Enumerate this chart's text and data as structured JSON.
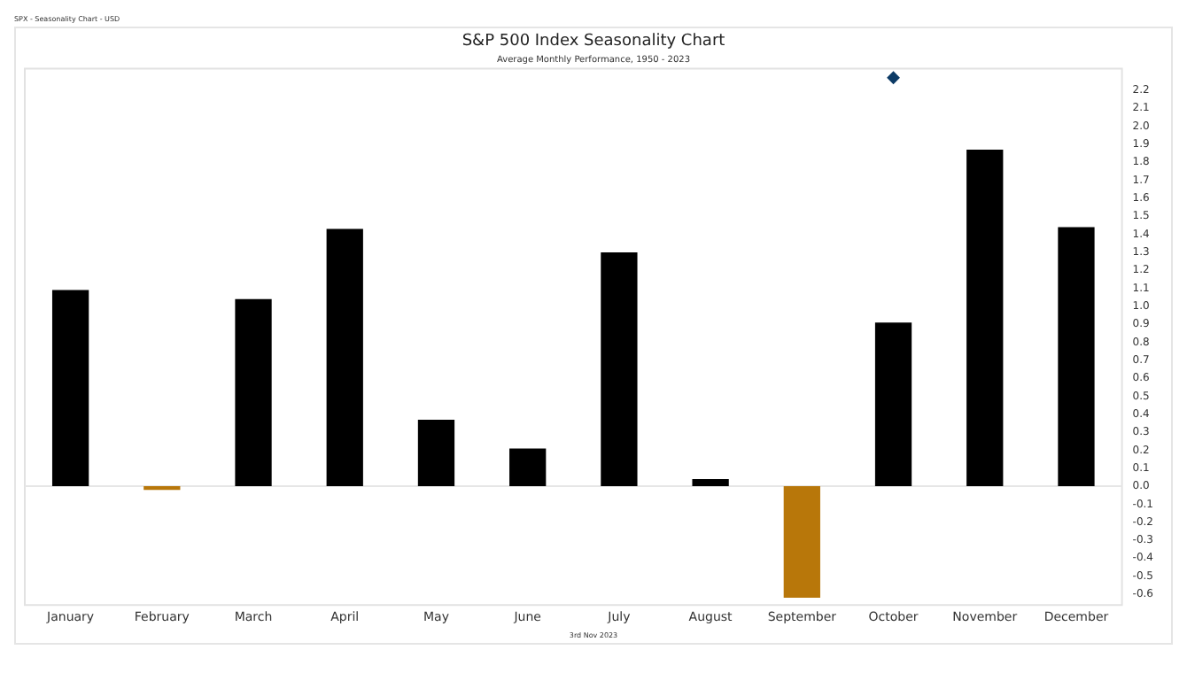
{
  "chart_data": {
    "type": "bar",
    "title": "S&P 500 Index Seasonality Chart",
    "subtitle": "Average Monthly Performance, 1950 - 2023",
    "annotations": [
      "SPX - Seasonality Chart - USD",
      "3rd Nov 2023"
    ],
    "categories": [
      "January",
      "February",
      "March",
      "April",
      "May",
      "June",
      "July",
      "August",
      "September",
      "October",
      "November",
      "December"
    ],
    "series": [
      {
        "values": [
          1.09,
          -0.02,
          1.04,
          1.43,
          0.37,
          0.21,
          1.3,
          0.04,
          -0.62,
          0.91,
          1.87,
          1.44
        ],
        "colors": [
          "#000000",
          "#b8770a",
          "#000000",
          "#000000",
          "#000000",
          "#000000",
          "#000000",
          "#000000",
          "#b8770a",
          "#000000",
          "#000000",
          "#000000"
        ]
      },
      {
        "type": "scatter",
        "x": [
          "October"
        ],
        "values": [
          2.27
        ],
        "color": "#0d3b66",
        "marker": "diamond"
      }
    ],
    "ylim": [
      -0.66,
      2.32
    ],
    "yticks": [
      -0.6,
      -0.5,
      -0.4,
      -0.3,
      -0.2,
      -0.1,
      {
        "value": 0,
        "label": "0.0"
      },
      0.1,
      0.2,
      0.3,
      0.4,
      0.5,
      0.6,
      0.7,
      0.8,
      0.9,
      {
        "value": 1,
        "label": "1.0"
      },
      1.1,
      1.2,
      1.3,
      1.4,
      1.5,
      1.6,
      1.7,
      1.8,
      1.9,
      {
        "value": 2,
        "label": "2.0"
      },
      2.1,
      2.2
    ],
    "ref_lines": [
      {
        "axis": "y",
        "value": 0,
        "color": "#e6e6e6"
      }
    ],
    "grid": false,
    "legend": false
  }
}
